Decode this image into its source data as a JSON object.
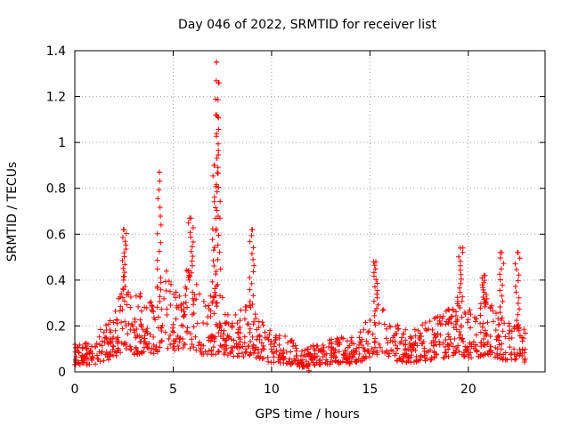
{
  "chart_data": {
    "type": "scatter",
    "title": "Day 046 of 2022, SRMTID for receiver list",
    "xlabel": "GPS time / hours",
    "ylabel": "SRMTID / TECUs",
    "xlim": [
      0,
      23.9
    ],
    "ylim": [
      0,
      1.4
    ],
    "x_ticks": [
      0,
      5,
      10,
      15,
      20
    ],
    "x_tick_labels": [
      "0",
      "5",
      "10",
      "15",
      "20"
    ],
    "y_ticks": [
      0,
      0.2,
      0.4,
      0.6,
      0.8,
      1.0,
      1.2,
      1.4
    ],
    "y_tick_labels": [
      "0",
      "0.2",
      "0.4",
      "0.6",
      "0.8",
      "1",
      "1.2",
      "1.4"
    ],
    "grid": true,
    "marker": "+",
    "marker_color": "#ff0000",
    "series": [
      {
        "name": "SRMTID",
        "x_range": [
          0,
          22.9
        ],
        "typical_level": 0.12,
        "peaks": [
          {
            "x": 2.5,
            "y": 0.62
          },
          {
            "x": 4.3,
            "y": 0.87
          },
          {
            "x": 5.9,
            "y": 0.67
          },
          {
            "x": 7.2,
            "y": 1.35
          },
          {
            "x": 7.3,
            "y": 1.26
          },
          {
            "x": 7.2,
            "y": 1.12
          },
          {
            "x": 7.1,
            "y": 0.9
          },
          {
            "x": 9.0,
            "y": 0.62
          },
          {
            "x": 15.3,
            "y": 0.48
          },
          {
            "x": 19.6,
            "y": 0.54
          },
          {
            "x": 20.8,
            "y": 0.42
          },
          {
            "x": 21.7,
            "y": 0.52
          },
          {
            "x": 22.5,
            "y": 0.52
          }
        ],
        "minimum": {
          "x": 11.9,
          "y": 0.0
        }
      }
    ]
  }
}
